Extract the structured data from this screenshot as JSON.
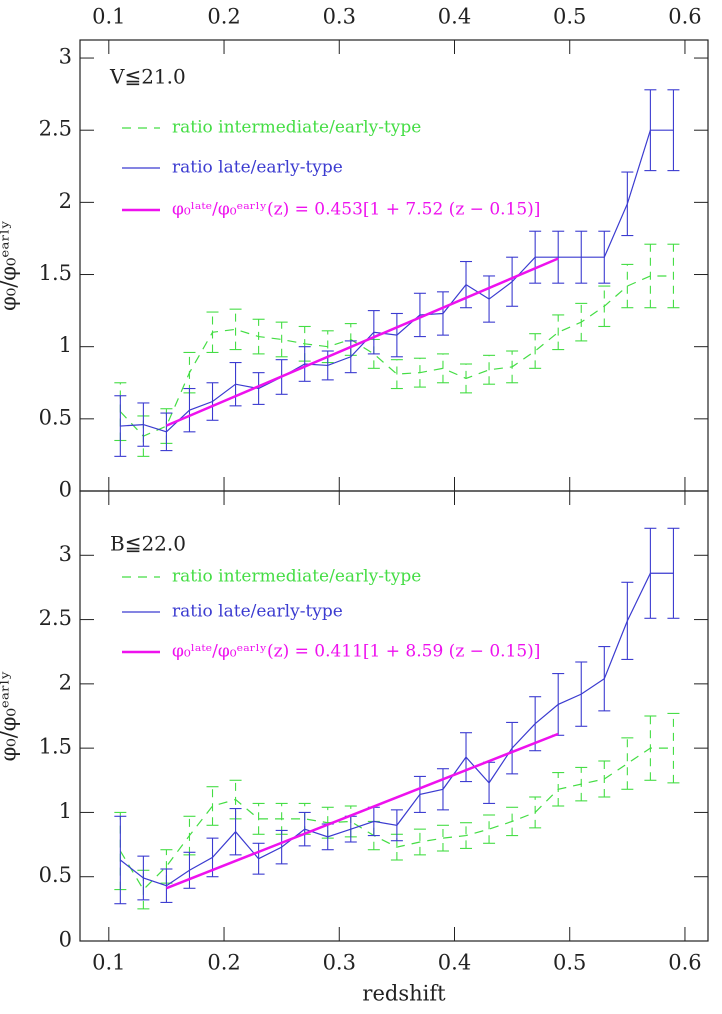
{
  "chart_data": [
    {
      "type": "line",
      "annotation": "V≦21.0",
      "ylabel": "φ₀/φ₀ᵉᵃʳˡʸ",
      "xaxis_position": "top",
      "xlim": [
        0.075,
        0.62
      ],
      "xticks": [
        0.1,
        0.2,
        0.3,
        0.4,
        0.5,
        0.6
      ],
      "ylim": [
        0,
        3.125
      ],
      "yticks": [
        0,
        0.5,
        1,
        1.5,
        2,
        2.5,
        3
      ],
      "x": [
        0.11,
        0.13,
        0.15,
        0.17,
        0.19,
        0.21,
        0.23,
        0.25,
        0.27,
        0.29,
        0.31,
        0.33,
        0.35,
        0.37,
        0.39,
        0.41,
        0.43,
        0.45,
        0.47,
        0.49,
        0.51,
        0.53,
        0.55,
        0.57,
        0.59
      ],
      "series": [
        {
          "name": "ratio intermediate/early-type",
          "color": "#44dd44",
          "style": "dashed",
          "values": [
            0.55,
            0.38,
            0.45,
            0.82,
            1.1,
            1.12,
            1.07,
            1.05,
            1.02,
            1.0,
            1.05,
            0.95,
            0.81,
            0.82,
            0.85,
            0.78,
            0.84,
            0.86,
            0.97,
            1.1,
            1.17,
            1.28,
            1.42,
            1.49,
            1.49
          ],
          "errors": [
            0.2,
            0.14,
            0.12,
            0.14,
            0.14,
            0.14,
            0.12,
            0.12,
            0.12,
            0.11,
            0.11,
            0.1,
            0.1,
            0.1,
            0.1,
            0.1,
            0.1,
            0.11,
            0.12,
            0.12,
            0.13,
            0.14,
            0.15,
            0.22,
            0.22
          ]
        },
        {
          "name": "ratio late/early-type",
          "color": "#3b3bd0",
          "style": "solid",
          "values": [
            0.45,
            0.46,
            0.41,
            0.56,
            0.62,
            0.74,
            0.71,
            0.79,
            0.88,
            0.87,
            0.93,
            1.1,
            1.08,
            1.22,
            1.23,
            1.43,
            1.33,
            1.45,
            1.62,
            1.62,
            1.62,
            1.62,
            1.99,
            2.5,
            2.5
          ],
          "errors": [
            0.21,
            0.15,
            0.13,
            0.15,
            0.13,
            0.15,
            0.11,
            0.12,
            0.12,
            0.1,
            0.11,
            0.15,
            0.15,
            0.15,
            0.15,
            0.16,
            0.16,
            0.17,
            0.18,
            0.18,
            0.18,
            0.18,
            0.22,
            0.28,
            0.28
          ]
        },
        {
          "name": "φ₀ˡᵃᵗᵉ/φ₀ᵉᵃʳˡʸ(z) = 0.453[1 + 7.52 (z − 0.15)]",
          "color": "#ee11ee",
          "style": "thick",
          "x": [
            0.15,
            0.49
          ],
          "values": [
            0.453,
            1.611
          ]
        }
      ]
    },
    {
      "type": "line",
      "annotation": "B≦22.0",
      "ylabel": "φ₀/φ₀ᵉᵃʳˡʸ",
      "xaxis_position": "bottom",
      "xlabel": "redshift",
      "xlim": [
        0.075,
        0.62
      ],
      "xticks": [
        0.1,
        0.2,
        0.3,
        0.4,
        0.5,
        0.6
      ],
      "ylim": [
        0,
        3.5
      ],
      "yticks": [
        0,
        0.5,
        1,
        1.5,
        2,
        2.5,
        3
      ],
      "x": [
        0.11,
        0.13,
        0.15,
        0.17,
        0.19,
        0.21,
        0.23,
        0.25,
        0.27,
        0.29,
        0.31,
        0.33,
        0.35,
        0.37,
        0.39,
        0.41,
        0.43,
        0.45,
        0.47,
        0.49,
        0.51,
        0.53,
        0.55,
        0.57,
        0.59
      ],
      "series": [
        {
          "name": "ratio intermediate/early-type",
          "color": "#44dd44",
          "style": "dashed",
          "values": [
            0.7,
            0.4,
            0.58,
            0.82,
            1.05,
            1.1,
            0.95,
            0.95,
            0.95,
            0.92,
            0.93,
            0.82,
            0.73,
            0.77,
            0.8,
            0.82,
            0.87,
            0.93,
            1.0,
            1.18,
            1.22,
            1.26,
            1.38,
            1.5,
            1.5
          ],
          "errors": [
            0.3,
            0.15,
            0.13,
            0.15,
            0.15,
            0.15,
            0.12,
            0.12,
            0.12,
            0.12,
            0.12,
            0.11,
            0.1,
            0.1,
            0.1,
            0.1,
            0.11,
            0.11,
            0.12,
            0.13,
            0.13,
            0.14,
            0.2,
            0.25,
            0.27
          ]
        },
        {
          "name": "ratio late/early-type",
          "color": "#3b3bd0",
          "style": "solid",
          "values": [
            0.63,
            0.49,
            0.43,
            0.55,
            0.65,
            0.85,
            0.64,
            0.73,
            0.87,
            0.81,
            0.87,
            0.93,
            0.9,
            1.14,
            1.18,
            1.43,
            1.23,
            1.5,
            1.69,
            1.84,
            1.92,
            2.04,
            2.49,
            2.86,
            2.86
          ],
          "errors": [
            0.34,
            0.17,
            0.13,
            0.14,
            0.15,
            0.18,
            0.12,
            0.13,
            0.13,
            0.1,
            0.1,
            0.11,
            0.12,
            0.14,
            0.16,
            0.19,
            0.16,
            0.2,
            0.21,
            0.24,
            0.25,
            0.25,
            0.3,
            0.35,
            0.35
          ]
        },
        {
          "name": "φ₀ˡᵃᵗᵉ/φ₀ᵉᵃʳˡʸ(z) = 0.411[1 + 8.59 (z − 0.15)]",
          "color": "#ee11ee",
          "style": "thick",
          "x": [
            0.15,
            0.49
          ],
          "values": [
            0.411,
            1.611
          ]
        }
      ]
    }
  ]
}
